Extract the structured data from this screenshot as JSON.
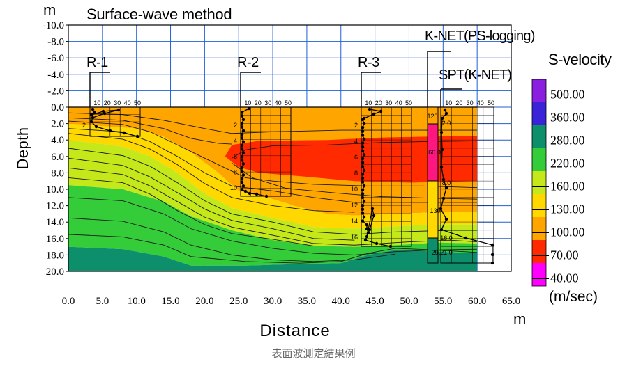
{
  "chart_data": {
    "type": "heatmap",
    "title": "Surface-wave method",
    "xlabel": "Distance",
    "xunit": "m",
    "ylabel": "Depth",
    "yunit": "m",
    "x_ticks": [
      "0.0",
      "5.0",
      "10.0",
      "15.0",
      "20.0",
      "25.0",
      "30.0",
      "35.0",
      "40.0",
      "45.0",
      "50.0",
      "55.0",
      "60.0",
      "65.0"
    ],
    "y_ticks": [
      "-10.0",
      "-8.0",
      "-6.0",
      "-4.0",
      "-2.0",
      "0.0",
      "2.0",
      "4.0",
      "6.0",
      "8.0",
      "10.0",
      "12.0",
      "14.0",
      "16.0",
      "18.0",
      "20.0"
    ],
    "xlim": [
      0,
      65
    ],
    "ylim": [
      -10,
      20
    ],
    "colorbar": {
      "title": "S-velocity",
      "unit": "(m/sec)",
      "levels": [
        {
          "label": "500.00",
          "value": 500,
          "color": "#8A1FE0"
        },
        {
          "label": "360.00",
          "value": 360,
          "color": "#3A22D8"
        },
        {
          "label": "280.00",
          "value": 280,
          "color": "#0E8F6B"
        },
        {
          "label": "220.00",
          "value": 220,
          "color": "#35CC3A"
        },
        {
          "label": "160.00",
          "value": 160,
          "color": "#C5E81A"
        },
        {
          "label": "130.00",
          "value": 130,
          "color": "#FFD800"
        },
        {
          "label": "100.00",
          "value": 100,
          "color": "#FFA500"
        },
        {
          "label": "70.00",
          "value": 70,
          "color": "#FF2A00"
        },
        {
          "label": "40.00",
          "value": 40,
          "color": "#FF00FF"
        }
      ]
    },
    "boreholes": [
      {
        "name": "R-1",
        "x": 2.5,
        "depth_labels": [
          "2"
        ],
        "n_scale": [
          "10",
          "20",
          "30",
          "40",
          "50"
        ]
      },
      {
        "name": "R-2",
        "x": 25.0,
        "depth_labels": [
          "2",
          "4",
          "6",
          "8",
          "10"
        ],
        "n_scale": [
          "10",
          "20",
          "30",
          "40",
          "50"
        ]
      },
      {
        "name": "R-3",
        "x": 42.5,
        "depth_labels": [
          "2",
          "4",
          "6",
          "8",
          "10",
          "12",
          "14",
          "16"
        ],
        "n_scale": [
          "10",
          "20",
          "30",
          "40",
          "50"
        ]
      },
      {
        "name": "K-NET(PS-logging)",
        "x": 53.0,
        "layer_values": [
          "120",
          "60.0",
          "130",
          "290"
        ]
      },
      {
        "name": "SPT(K-NET)",
        "x": 55.0,
        "depth_labels": [
          "2.0",
          "8.0",
          "16.0",
          "21.0"
        ],
        "n_scale": [
          "10",
          "20",
          "30",
          "40",
          "50"
        ]
      }
    ]
  },
  "labels": {
    "m_top": "m",
    "m_bottom": "m",
    "caption": "表面波測定結果例"
  }
}
